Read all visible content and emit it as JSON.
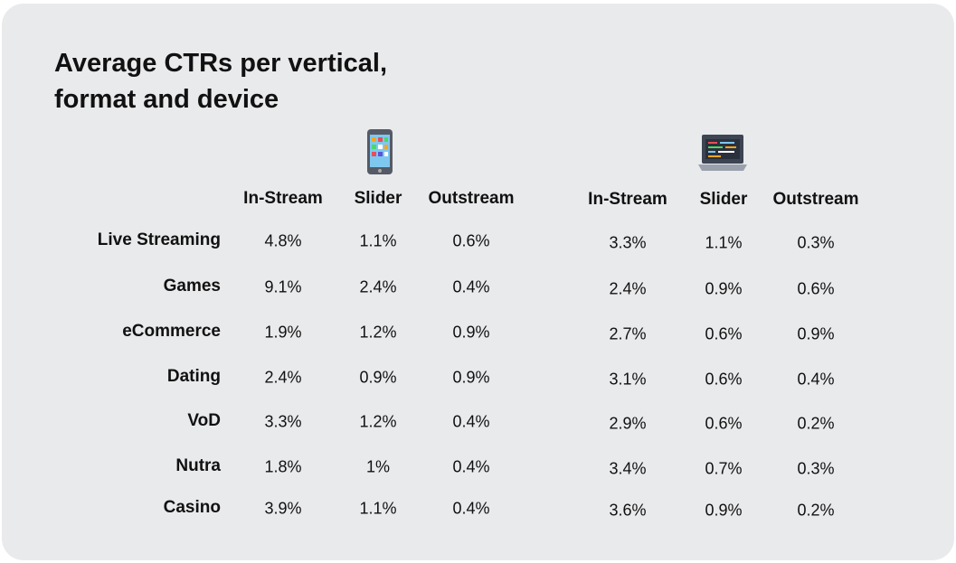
{
  "title": "Average CTRs per vertical, format and device",
  "rows": [
    "Live Streaming",
    "Games",
    "eCommerce",
    "Dating",
    "VoD",
    "Nutra",
    "Casino"
  ],
  "devices": [
    {
      "columns": [
        "In-Stream",
        "Slider",
        "Outstream"
      ],
      "values": [
        [
          "4.8%",
          "1.1%",
          "0.6%"
        ],
        [
          "9.1%",
          "2.4%",
          "0.4%"
        ],
        [
          "1.9%",
          "1.2%",
          "0.9%"
        ],
        [
          "2.4%",
          "0.9%",
          "0.9%"
        ],
        [
          "3.3%",
          "1.2%",
          "0.4%"
        ],
        [
          "1.8%",
          "1%",
          "0.4%"
        ],
        [
          "3.9%",
          "1.1%",
          "0.4%"
        ]
      ]
    },
    {
      "columns": [
        "In-Stream",
        "Slider",
        "Outstream"
      ],
      "values": [
        [
          "3.3%",
          "1.1%",
          "0.3%"
        ],
        [
          "2.4%",
          "0.9%",
          "0.6%"
        ],
        [
          "2.7%",
          "0.6%",
          "0.9%"
        ],
        [
          "3.1%",
          "0.6%",
          "0.4%"
        ],
        [
          "2.9%",
          "0.6%",
          "0.2%"
        ],
        [
          "3.4%",
          "0.7%",
          "0.3%"
        ],
        [
          "3.6%",
          "0.9%",
          "0.2%"
        ]
      ]
    }
  ]
}
